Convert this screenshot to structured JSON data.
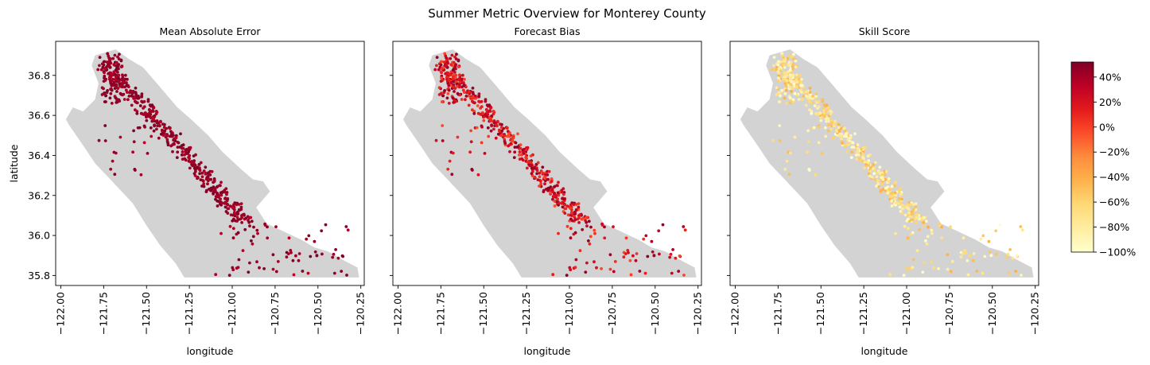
{
  "figure": {
    "suptitle": "Summer Metric Overview for Monterey County"
  },
  "chart_data": [
    {
      "type": "scatter",
      "title": "Mean Absolute Error",
      "xlabel": "longitude",
      "ylabel": "latitude",
      "xlim": [
        -122.03,
        -120.23
      ],
      "ylim": [
        35.75,
        36.97
      ],
      "xticks": [
        -122.0,
        -121.75,
        -121.5,
        -121.25,
        -121.0,
        -120.75,
        -120.5,
        -120.25
      ],
      "xtick_labels": [
        "−122.00",
        "−121.75",
        "−121.50",
        "−121.25",
        "−121.00",
        "−120.75",
        "−120.50",
        "−120.25"
      ],
      "yticks": [
        35.8,
        36.0,
        36.2,
        36.4,
        36.6,
        36.8
      ],
      "ytick_labels": [
        "35.8",
        "36.0",
        "36.2",
        "36.4",
        "36.6",
        "36.8"
      ],
      "value_range": [
        35,
        55
      ],
      "grid": false
    },
    {
      "type": "scatter",
      "title": "Forecast Bias",
      "xlabel": "longitude",
      "ylabel": "",
      "xlim": [
        -122.03,
        -120.23
      ],
      "ylim": [
        35.75,
        36.97
      ],
      "xticks": [
        -122.0,
        -121.75,
        -121.5,
        -121.25,
        -121.0,
        -120.75,
        -120.5,
        -120.25
      ],
      "xtick_labels": [
        "−122.00",
        "−121.75",
        "−121.50",
        "−121.25",
        "−121.00",
        "−120.75",
        "−120.50",
        "−120.25"
      ],
      "yticks": [
        35.8,
        36.0,
        36.2,
        36.4,
        36.6,
        36.8
      ],
      "ytick_labels": [
        "",
        "",
        "",
        "",
        "",
        ""
      ],
      "value_range": [
        -5,
        50
      ],
      "grid": false
    },
    {
      "type": "scatter",
      "title": "Skill Score",
      "xlabel": "longitude",
      "ylabel": "",
      "xlim": [
        -122.03,
        -120.23
      ],
      "ylim": [
        35.75,
        36.97
      ],
      "xticks": [
        -122.0,
        -121.75,
        -121.5,
        -121.25,
        -121.0,
        -120.75,
        -120.5,
        -120.25
      ],
      "xtick_labels": [
        "−122.00",
        "−121.75",
        "−121.50",
        "−121.25",
        "−121.00",
        "−120.75",
        "−120.50",
        "−120.25"
      ],
      "yticks": [
        35.8,
        36.0,
        36.2,
        36.4,
        36.6,
        36.8
      ],
      "ytick_labels": [
        "",
        "",
        "",
        "",
        "",
        ""
      ],
      "value_range": [
        -100,
        -40
      ],
      "grid": false
    }
  ],
  "colorbar": {
    "colormap": "YlOrRd",
    "ticks": [
      40,
      20,
      0,
      -20,
      -40,
      -60,
      -80,
      -100
    ],
    "tick_labels": [
      "40%",
      "20%",
      "0%",
      "−20%",
      "−40%",
      "−60%",
      "−80%",
      "−100%"
    ],
    "range": [
      -100,
      52
    ]
  },
  "colors": {
    "land": "#d3d3d3",
    "ylorrd": [
      "#ffffcc",
      "#ffeda0",
      "#fed976",
      "#feb24c",
      "#fd8d3c",
      "#fc4e2a",
      "#e31a1c",
      "#bd0026",
      "#800026"
    ]
  }
}
